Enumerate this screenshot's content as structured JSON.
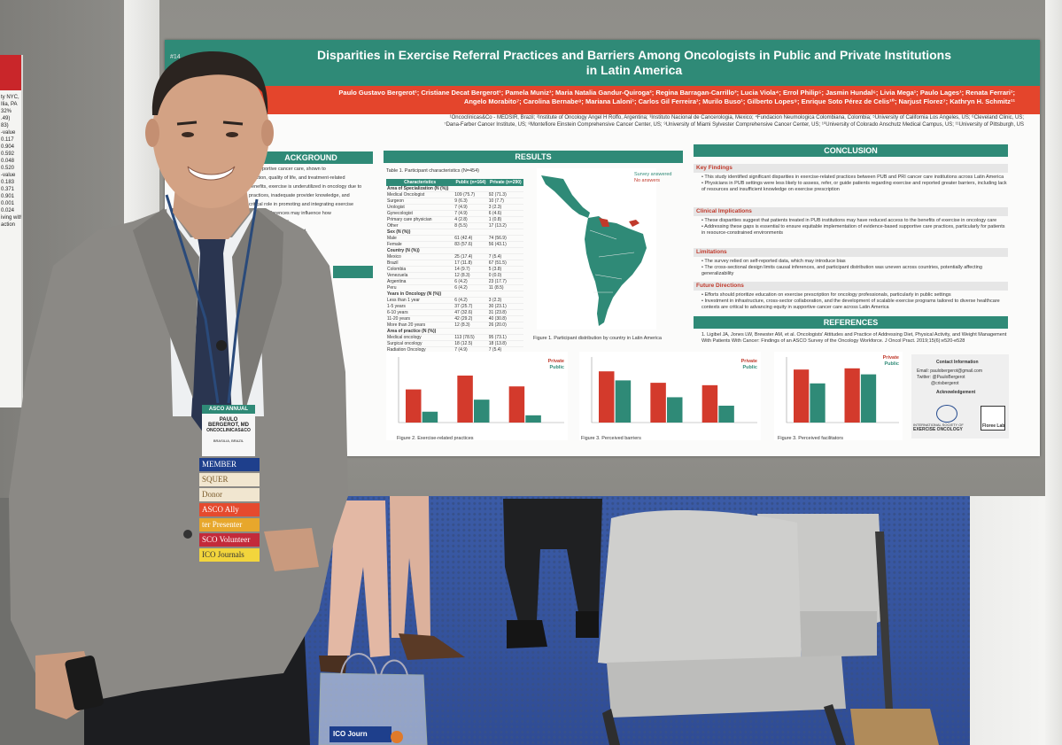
{
  "poster": {
    "id_fragment": "#14",
    "title_line1": "Disparities in Exercise Referral Practices and Barriers Among Oncologists in Public and Private Institutions",
    "title_line2": "in Latin America",
    "authors_line1": "Paulo Gustavo Bergerot¹; Cristiane Decat Bergerot¹; Pamela Muniz¹; Maria Natalia Gandur-Quiroga²; Regina Barragan-Carrillo³; Lucia Viola⁴; Errol Philip⁵; Jasmin Hundal⁶; Livia Mega¹; Paulo Lages¹; Renata Ferrari¹;",
    "authors_line2": "Angelo Morabito⁷; Carolina Bernabe⁸; Mariana Laloni¹; Carlos Gil Ferreira¹; Murilo Buso¹; Gilberto Lopes⁹; Enrique Soto Pérez de Celis¹⁰; Narjust Florez⁷; Kathryn H. Schmitz¹¹",
    "affil_line1": "¹Oncoclínicas&Co - MEDSIR, Brazil; ²Institute of Oncology Angel H Roffo, Argentina; ³Instituto Nacional de Cancerologia, Mexico; ⁴Fundacion Neumologica Colombiana, Colombia; ⁵University of California Los Angeles, US; ⁶Cleveland Clinic, US;",
    "affil_line2": "⁷Dana-Farber Cancer Institute, US; ⁸Montefiore Einstein Comprehensive Cancer Center, US; ⁹University of Miami Sylvester Comprehensive Cancer Center, US; ¹⁰University of Colorado Anschutz Medical Campus, US; ¹¹University of Pittsburgh, US",
    "background": {
      "heading": "ACKGROUND",
      "lines": [
        "of supportive cancer care, shown to",
        "function, quality of life, and treatment-related",
        "benefits, exercise is underutilized in oncology due to",
        "practices, inadequate provider knowledge, and",
        "critical role in promoting and integrating exercise",
        "system differences may influence how",
        "red and supported",
        "ices, exercise assessment,",
        "B) and private (PRI)"
      ]
    },
    "results": {
      "heading": "RESULTS",
      "table_caption": "Table 1. Participant characteristics (N=454)",
      "table_headers": [
        "Characteristics",
        "Public (n=164)",
        "Private (n=290)"
      ],
      "table_rows": [
        [
          "Area of Specialization (N (%))",
          "",
          ""
        ],
        [
          "Medical Oncologist",
          "109 (75.7)",
          "92 (71.3)"
        ],
        [
          "Surgeon",
          "9 (6.3)",
          "10 (7.7)"
        ],
        [
          "Urologist",
          "7 (4.9)",
          "3 (2.3)"
        ],
        [
          "Gynecologist",
          "7 (4.9)",
          "6 (4.6)"
        ],
        [
          "Primary care physician",
          "4 (2.8)",
          "1 (0.8)"
        ],
        [
          "Other",
          "8 (5.5)",
          "17 (13.2)"
        ],
        [
          "Sex (N (%))",
          "",
          ""
        ],
        [
          "Male",
          "61 (42.4)",
          "74 (56.9)"
        ],
        [
          "Female",
          "83 (57.6)",
          "56 (43.1)"
        ],
        [
          "Country (N (%))",
          "",
          ""
        ],
        [
          "Mexico",
          "25 (17.4)",
          "7 (5.4)"
        ],
        [
          "Brazil",
          "17 (11.8)",
          "67 (51.5)"
        ],
        [
          "Colombia",
          "14 (9.7)",
          "5 (3.8)"
        ],
        [
          "Venezuela",
          "12 (8.3)",
          "0 (0.0)"
        ],
        [
          "Argentina",
          "6 (4.2)",
          "23 (17.7)"
        ],
        [
          "Peru",
          "6 (4.2)",
          "11 (8.5)"
        ],
        [
          "Years in Oncology (N (%))",
          "",
          ""
        ],
        [
          "Less than 1 year",
          "6 (4.2)",
          "3 (2.3)"
        ],
        [
          "1-5 years",
          "37 (25.7)",
          "30 (23.1)"
        ],
        [
          "6-10 years",
          "47 (32.6)",
          "31 (23.8)"
        ],
        [
          "11-20 years",
          "42 (29.2)",
          "40 (30.8)"
        ],
        [
          "More than 20 years",
          "12 (8.3)",
          "26 (20.0)"
        ],
        [
          "Area of practice (N (%))",
          "",
          ""
        ],
        [
          "Medical oncology",
          "113 (78.5)",
          "95 (73.1)"
        ],
        [
          "Surgical oncology",
          "18 (12.5)",
          "18 (13.8)"
        ],
        [
          "Radiation Oncology",
          "7 (4.9)",
          "7 (5.4)"
        ],
        [
          "Palliative care",
          "5 (3.4)",
          "10 (7.7)"
        ]
      ],
      "map_legend_answered": "Survey answered",
      "map_legend_none": "No answers",
      "figure1_caption": "Figure 1. Participant distribution by country in Latin America",
      "figure2_caption": "Figure 2. Exercise-related practices",
      "figure3a_caption": "Figure 3. Perceived barriers",
      "figure3b_caption": "Figure 3. Perceived facilitators",
      "legend_private": "Private",
      "legend_public": "Public"
    },
    "conclusion": {
      "heading": "CONCLUSION",
      "key_findings_title": "Key Findings",
      "key_findings": [
        "This study identified significant disparities in exercise-related practices between PUB and PRI cancer care institutions across Latin America",
        "Physicians in PUB settings were less likely to assess, refer, or guide patients regarding exercise and reported greater barriers, including lack of resources and insufficient knowledge on exercise prescription"
      ],
      "clinical_title": "Clinical Implications",
      "clinical": [
        "These disparities suggest that patients treated in PUB institutions may have reduced access to the benefits of exercise in oncology care",
        "Addressing these gaps is essential to ensure equitable implementation of evidence-based supportive care practices, particularly for patients in resource-constrained environments"
      ],
      "limitations_title": "Limitations",
      "limitations": [
        "The survey relied on self-reported data, which may introduce bias",
        "The cross-sectional design limits causal inferences, and participant distribution was uneven across countries, potentially affecting generalizability"
      ],
      "future_title": "Future Directions",
      "future": [
        "Efforts should prioritize education on exercise prescription for oncology professionals, particularly in public settings",
        "Investment in infrastructure, cross-sector collaboration, and the development of scalable exercise programs tailored to diverse healthcare contexts are critical to advancing equity in supportive cancer care across Latin America"
      ]
    },
    "references": {
      "heading": "REFERENCES",
      "text": "1. Ligibel JA, Jones LW, Brewster AM, et al. Oncologists' Attitudes and Practice of Addressing Diet, Physical Activity, and Weight Management With Patients With Cancer: Findings of an ASCO Survey of the Oncology Workforce. J Oncol Pract. 2019;15(6):e520-e528"
    },
    "contact": {
      "title": "Contact Information",
      "email": "Email: paulobergerot@gmail.com",
      "twitter": "Twitter: @PauloBergerot",
      "handle": "@crisbergerot",
      "ack": "Acknowledgement",
      "logo1": "EXERCISE ONCOLOGY",
      "logo1_sub": "INTERNATIONAL SOCIETY OF",
      "logo2": "Floree Lab"
    }
  },
  "left_poster": {
    "lines": [
      "ty NYC,",
      "Ilia, PA",
      "32%",
      ".49)",
      "83)",
      "-value",
      "0.117",
      "0.904",
      "0.592",
      "0.048",
      "0.520",
      "-value",
      "0.183",
      "0.371",
      "0.901",
      "0.001",
      "0.024",
      "iving within",
      "action"
    ]
  },
  "badge": {
    "name_line1": "PAULO",
    "name_line2": "BERGEROT, MD",
    "org": "ONCOCLINICAS&CO",
    "city": "BRASILIA, BRAZIL",
    "top_label": "ASCO",
    "top_label2": "ANNUAL",
    "ribbons": [
      {
        "text": "MEMBER",
        "bg": "#1e3f8c",
        "fg": "#ffffff"
      },
      {
        "text": "SQUER",
        "bg": "#f1e6d0",
        "fg": "#7a5a2a"
      },
      {
        "text": "Donor",
        "bg": "#f1e6d0",
        "fg": "#7a5a2a"
      },
      {
        "text": "ASCO Ally",
        "bg": "#e54a2e",
        "fg": "#ffffff"
      },
      {
        "text": "ter Presenter",
        "bg": "#e7a72c",
        "fg": "#ffffff"
      },
      {
        "text": "SCO Volunteer",
        "bg": "#c32a3a",
        "fg": "#ffffff"
      },
      {
        "text": "ICO Journals",
        "bg": "#f2d53c",
        "fg": "#333333"
      }
    ]
  },
  "bag_label": "ICO Journ"
}
